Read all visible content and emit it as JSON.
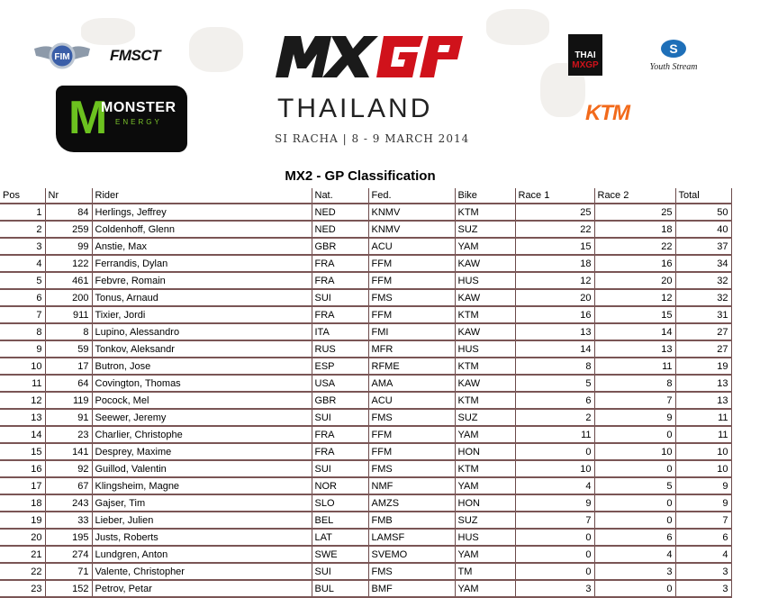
{
  "header": {
    "logos": {
      "fim": "FIM",
      "fmsct": "FMSCT",
      "monster": {
        "name": "MONSTER",
        "sub": "ENERGY"
      },
      "mxgp": "MXGP",
      "thai_mxgp": {
        "top": "THAI",
        "bottom": "MXGP"
      },
      "youthstream": "Youth Stream",
      "ktm": "KTM"
    },
    "event": "THAILAND",
    "subtitle": "SI RACHA | 8 - 9 MARCH 2014",
    "colors": {
      "mxgp_red": "#d0121b",
      "monster_green": "#6cc21f",
      "ktm_orange": "#f26a1b",
      "border": "#7a5555"
    }
  },
  "title": "MX2 - GP Classification",
  "table": {
    "columns": [
      "Pos",
      "Nr",
      "Rider",
      "Nat.",
      "Fed.",
      "Bike",
      "Race 1",
      "Race 2",
      "Total"
    ],
    "rows": [
      [
        "1",
        "84",
        "Herlings, Jeffrey",
        "NED",
        "KNMV",
        "KTM",
        "25",
        "25",
        "50"
      ],
      [
        "2",
        "259",
        "Coldenhoff, Glenn",
        "NED",
        "KNMV",
        "SUZ",
        "22",
        "18",
        "40"
      ],
      [
        "3",
        "99",
        "Anstie, Max",
        "GBR",
        "ACU",
        "YAM",
        "15",
        "22",
        "37"
      ],
      [
        "4",
        "122",
        "Ferrandis, Dylan",
        "FRA",
        "FFM",
        "KAW",
        "18",
        "16",
        "34"
      ],
      [
        "5",
        "461",
        "Febvre, Romain",
        "FRA",
        "FFM",
        "HUS",
        "12",
        "20",
        "32"
      ],
      [
        "6",
        "200",
        "Tonus, Arnaud",
        "SUI",
        "FMS",
        "KAW",
        "20",
        "12",
        "32"
      ],
      [
        "7",
        "911",
        "Tixier, Jordi",
        "FRA",
        "FFM",
        "KTM",
        "16",
        "15",
        "31"
      ],
      [
        "8",
        "8",
        "Lupino, Alessandro",
        "ITA",
        "FMI",
        "KAW",
        "13",
        "14",
        "27"
      ],
      [
        "9",
        "59",
        "Tonkov, Aleksandr",
        "RUS",
        "MFR",
        "HUS",
        "14",
        "13",
        "27"
      ],
      [
        "10",
        "17",
        "Butron, Jose",
        "ESP",
        "RFME",
        "KTM",
        "8",
        "11",
        "19"
      ],
      [
        "11",
        "64",
        "Covington, Thomas",
        "USA",
        "AMA",
        "KAW",
        "5",
        "8",
        "13"
      ],
      [
        "12",
        "119",
        "Pocock, Mel",
        "GBR",
        "ACU",
        "KTM",
        "6",
        "7",
        "13"
      ],
      [
        "13",
        "91",
        "Seewer, Jeremy",
        "SUI",
        "FMS",
        "SUZ",
        "2",
        "9",
        "11"
      ],
      [
        "14",
        "23",
        "Charlier, Christophe",
        "FRA",
        "FFM",
        "YAM",
        "11",
        "0",
        "11"
      ],
      [
        "15",
        "141",
        "Desprey, Maxime",
        "FRA",
        "FFM",
        "HON",
        "0",
        "10",
        "10"
      ],
      [
        "16",
        "92",
        "Guillod, Valentin",
        "SUI",
        "FMS",
        "KTM",
        "10",
        "0",
        "10"
      ],
      [
        "17",
        "67",
        "Klingsheim, Magne",
        "NOR",
        "NMF",
        "YAM",
        "4",
        "5",
        "9"
      ],
      [
        "18",
        "243",
        "Gajser, Tim",
        "SLO",
        "AMZS",
        "HON",
        "9",
        "0",
        "9"
      ],
      [
        "19",
        "33",
        "Lieber, Julien",
        "BEL",
        "FMB",
        "SUZ",
        "7",
        "0",
        "7"
      ],
      [
        "20",
        "195",
        "Justs, Roberts",
        "LAT",
        "LAMSF",
        "HUS",
        "0",
        "6",
        "6"
      ],
      [
        "21",
        "274",
        "Lundgren, Anton",
        "SWE",
        "SVEMO",
        "YAM",
        "0",
        "4",
        "4"
      ],
      [
        "22",
        "71",
        "Valente, Christopher",
        "SUI",
        "FMS",
        "TM",
        "0",
        "3",
        "3"
      ],
      [
        "23",
        "152",
        "Petrov, Petar",
        "BUL",
        "BMF",
        "YAM",
        "3",
        "0",
        "3"
      ]
    ]
  }
}
